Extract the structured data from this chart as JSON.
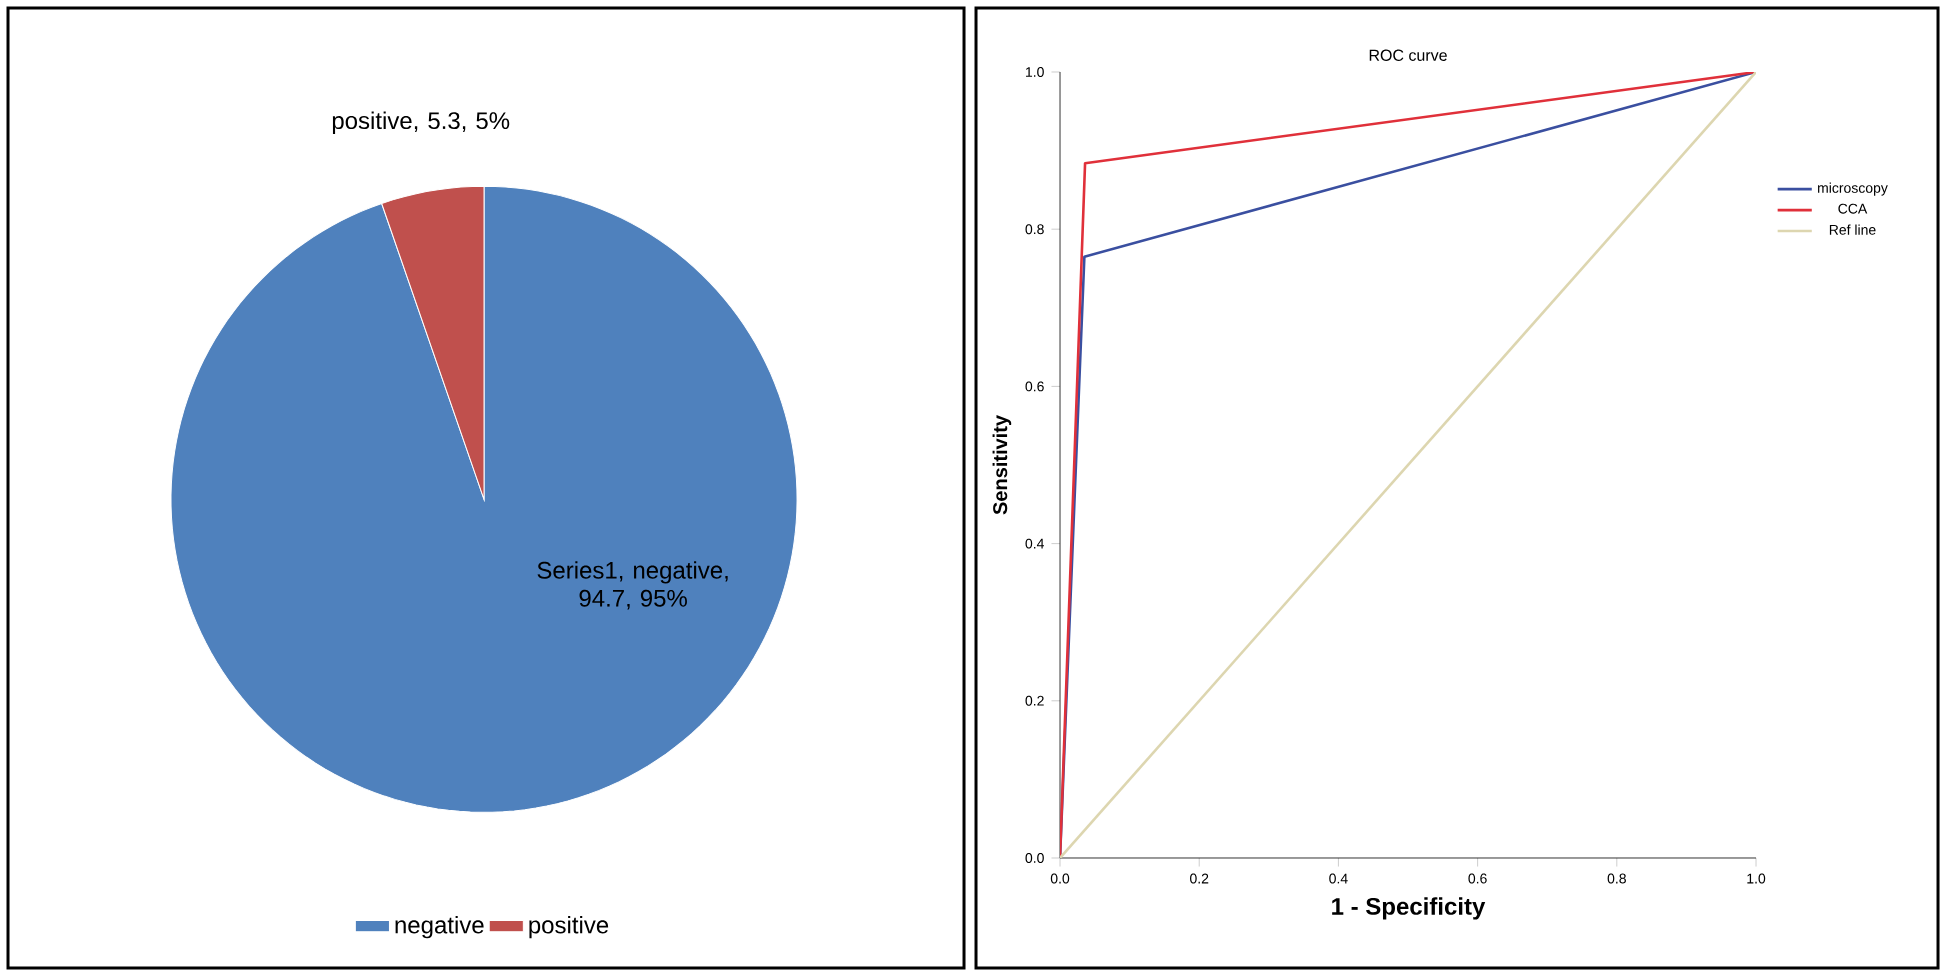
{
  "chart_data": [
    {
      "type": "pie",
      "categories": [
        "negative",
        "positive"
      ],
      "values": [
        94.7,
        5.3
      ],
      "colors": [
        "#4f81bd",
        "#c0504d"
      ],
      "value_labels": [
        "Series1, negative, 94.7, 95%",
        "positive, 5.3, 5%"
      ],
      "legend": "bottom"
    },
    {
      "type": "line",
      "title": "ROC curve",
      "xlabel": "1 - Specificity",
      "ylabel": "Sensitivity",
      "xlim": [
        0,
        1
      ],
      "ylim": [
        0,
        1
      ],
      "xticks": [
        {
          "value": 0,
          "label": "0.0"
        },
        {
          "value": 0.2,
          "label": "0.2"
        },
        {
          "value": 0.4,
          "label": "0.4"
        },
        {
          "value": 0.6,
          "label": "0.6"
        },
        {
          "value": 0.8,
          "label": "0.8"
        },
        {
          "value": 1,
          "label": "1.0"
        }
      ],
      "yticks": [
        {
          "value": 0,
          "label": "0.0"
        },
        {
          "value": 0.2,
          "label": "0.2"
        },
        {
          "value": 0.4,
          "label": "0.4"
        },
        {
          "value": 0.6,
          "label": "0.6"
        },
        {
          "value": 0.8,
          "label": "0.8"
        },
        {
          "value": 1,
          "label": "1.0"
        }
      ],
      "legend": "right",
      "series": [
        {
          "name": "microscopy",
          "color": "#3a4fa0",
          "x": [
            0,
            0.035,
            1
          ],
          "values": [
            0,
            0.765,
            1
          ]
        },
        {
          "name": "CCA",
          "color": "#e0303a",
          "x": [
            0,
            0.036,
            1
          ],
          "values": [
            0,
            0.884,
            1
          ]
        },
        {
          "name": "Ref line",
          "color": "#ddd6b0",
          "x": [
            0,
            1
          ],
          "values": [
            0,
            1
          ]
        }
      ]
    }
  ]
}
